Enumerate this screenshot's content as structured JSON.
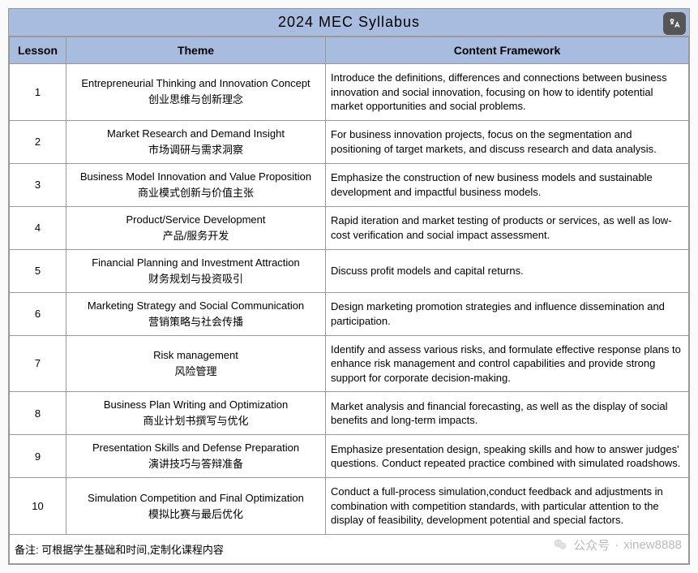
{
  "title": "2024  MEC  Syllabus",
  "headers": {
    "lesson": "Lesson",
    "theme": "Theme",
    "content": "Content Framework"
  },
  "rows": [
    {
      "n": "1",
      "en": "Entrepreneurial Thinking and Innovation Concept",
      "cn": "创业思维与创新理念",
      "c": "Introduce the definitions, differences and connections between business innovation and social innovation, focusing on how to identify potential market opportunities and social problems."
    },
    {
      "n": "2",
      "en": "Market Research and Demand Insight",
      "cn": "市场调研与需求洞察",
      "c": "For business innovation projects, focus on the segmentation and positioning of target markets, and discuss research and data analysis."
    },
    {
      "n": "3",
      "en": "Business Model Innovation and Value Proposition",
      "cn": "商业模式创新与价值主张",
      "c": "Emphasize the construction of new business models and sustainable development and impactful business models."
    },
    {
      "n": "4",
      "en": "Product/Service Development",
      "cn": "产品/服务开发",
      "c": "Rapid iteration and market testing of products or services, as well as low-cost verification and social impact assessment."
    },
    {
      "n": "5",
      "en": "Financial Planning and Investment Attraction",
      "cn": "财务规划与投资吸引",
      "c": "Discuss profit models and capital returns."
    },
    {
      "n": "6",
      "en": "Marketing Strategy and Social Communication",
      "cn": "营销策略与社会传播",
      "c": "Design marketing promotion strategies and influence dissemination and participation."
    },
    {
      "n": "7",
      "en": "Risk management",
      "cn": "风险管理",
      "c": "Identify and assess various risks, and formulate effective response plans to enhance risk management and control capabilities and provide strong support for  corporate decision-making."
    },
    {
      "n": "8",
      "en": "Business Plan Writing and Optimization",
      "cn": "商业计划书撰写与优化",
      "c": "Market analysis and financial forecasting, as well as the display of social benefits and long-term impacts."
    },
    {
      "n": "9",
      "en": "Presentation Skills and Defense Preparation",
      "cn": "演讲技巧与答辩准备",
      "c": "Emphasize presentation design, speaking skills and how to answer judges' questions. Conduct repeated practice combined with simulated roadshows."
    },
    {
      "n": "10",
      "en": "Simulation Competition and Final Optimization",
      "cn": "模拟比赛与最后优化",
      "c": "Conduct a full-process simulation,conduct feedback and adjustments in combination with competition standards, with particular attention to the display of feasibility, development potential and special factors."
    }
  ],
  "footer": "备注: 可根据学生基础和时间,定制化课程内容",
  "watermark": {
    "label": "公众号",
    "account": "xinew8888"
  },
  "colors": {
    "header_bg": "#a8bce0",
    "border": "#999999",
    "watermark": "#bbbbbb"
  },
  "fonts": {
    "title_size": 18,
    "header_size": 14,
    "cell_size": 13
  }
}
